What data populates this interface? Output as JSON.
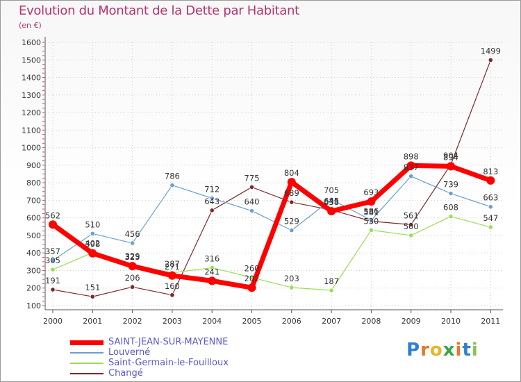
{
  "header": {
    "title": "Evolution du Montant de la Dette par Habitant",
    "unit": "(en €)"
  },
  "logo": {
    "text": "Proxiti"
  },
  "chart_data": {
    "type": "line",
    "title": "Evolution du Montant de la Dette par Habitant",
    "ylabel": "(en €)",
    "xlabel": "",
    "categories": [
      "2000",
      "2001",
      "2002",
      "2003",
      "2004",
      "2005",
      "2006",
      "2007",
      "2008",
      "2009",
      "2010",
      "2011"
    ],
    "ylim": [
      100,
      1600
    ],
    "yticks": [
      100,
      200,
      300,
      400,
      500,
      600,
      700,
      800,
      900,
      1000,
      1100,
      1200,
      1300,
      1400,
      1500,
      1600
    ],
    "grid": true,
    "legend": "bottom-left",
    "series": [
      {
        "name": "SAINT-JEAN-SUR-MAYENNE",
        "color": "#ff0000",
        "values": [
          562,
          398,
          325,
          271,
          241,
          202,
          804,
          638,
          693,
          898,
          894,
          813
        ]
      },
      {
        "name": "Louverné",
        "color": "#6a9fcf",
        "values": [
          357,
          510,
          456,
          786,
          712,
          640,
          529,
          705,
          586,
          837,
          739,
          663
        ]
      },
      {
        "name": "Saint-Germain-le-Fouilloux",
        "color": "#99dd55",
        "values": [
          305,
          402,
          329,
          287,
          316,
          260,
          203,
          187,
          530,
          500,
          608,
          547
        ]
      },
      {
        "name": "Changé",
        "color": "#7a2a2a",
        "values": [
          191,
          151,
          206,
          160,
          643,
          775,
          689,
          645,
          581,
          561,
          904,
          1499
        ]
      }
    ]
  }
}
